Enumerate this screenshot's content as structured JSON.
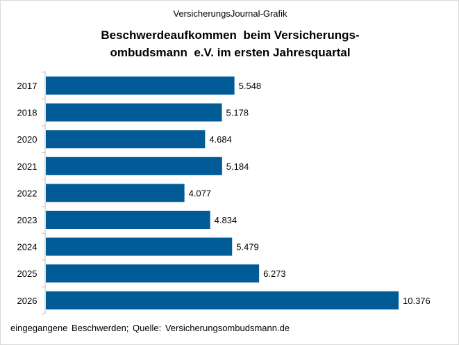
{
  "header": {
    "source_label": "VersicherungsJournal-Grafik",
    "title": "Beschwerdeaufkommen  beim Versicherungs-\nombudsmann  e.V. im ersten Jahresquartal"
  },
  "footnote": "eingegangene  Beschwerden;  Quelle:  Versicherungsombudsmann.de",
  "colors": {
    "bar": "#005b96",
    "axis": "#bfbfbf"
  },
  "chart_data": {
    "type": "bar",
    "orientation": "horizontal",
    "categories": [
      "2017",
      "2018",
      "2020",
      "2021",
      "2022",
      "2023",
      "2024",
      "2025",
      "2026"
    ],
    "values": [
      5548,
      5178,
      4684,
      5184,
      4077,
      4834,
      5479,
      6273,
      10376
    ],
    "value_labels": [
      "5.548",
      "5.178",
      "4.684",
      "5.184",
      "4.077",
      "4.834",
      "5.479",
      "6.273",
      "10.376"
    ],
    "title": "Beschwerdeaufkommen  beim Versicherungs-\nombudsmann  e.V. im ersten Jahresquartal",
    "xlim": [
      0,
      10376
    ],
    "grid": false,
    "legend": "none"
  }
}
